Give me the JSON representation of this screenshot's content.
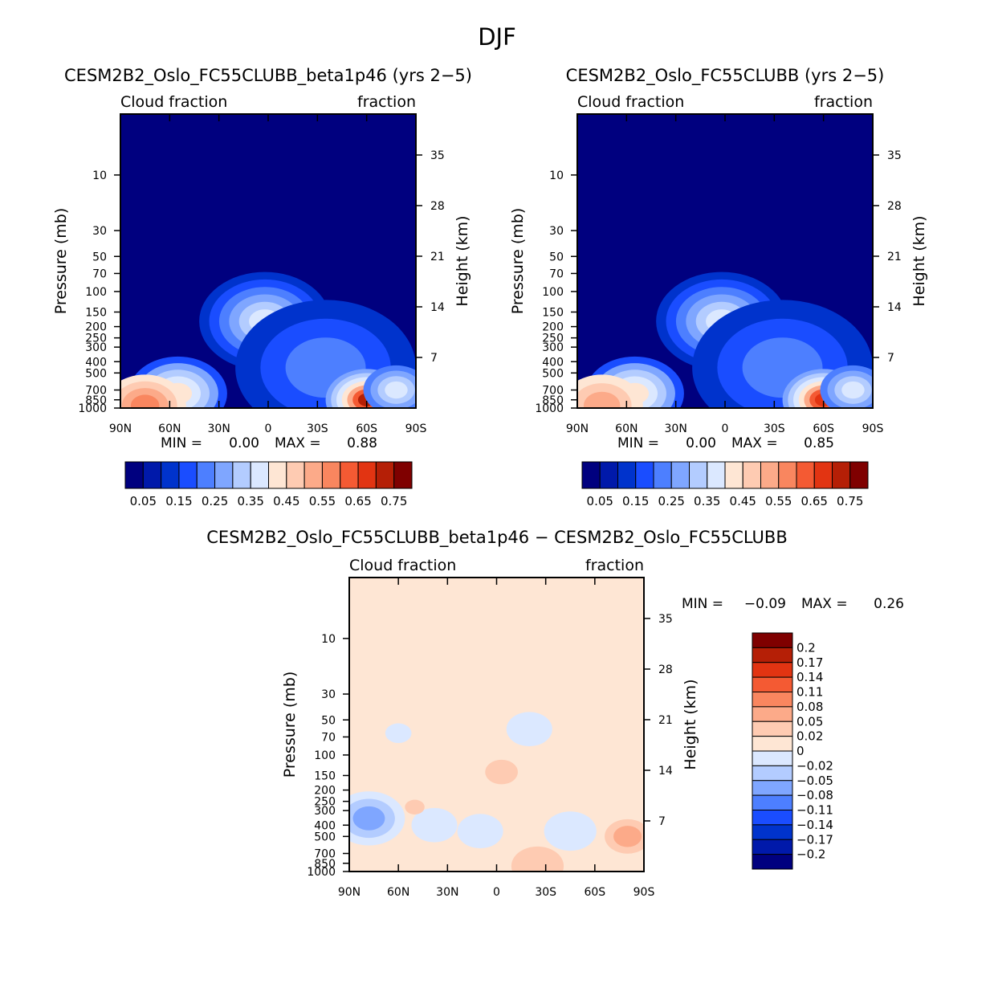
{
  "figure_title": "DJF",
  "colormaps": {
    "main": [
      "#00007f",
      "#0019aa",
      "#0033cc",
      "#1a4dff",
      "#4d7fff",
      "#7fa6ff",
      "#b3ccff",
      "#dbe8ff",
      "#fee6d4",
      "#fecbb2",
      "#fcaa89",
      "#f9865f",
      "#f45a33",
      "#e23412",
      "#b51f06",
      "#7f0000"
    ],
    "diff": [
      "#7f0000",
      "#b51f06",
      "#e23412",
      "#f45a33",
      "#f9865f",
      "#fcaa89",
      "#fecbb2",
      "#fee6d4",
      "#dbe8ff",
      "#b3ccff",
      "#7fa6ff",
      "#4d7fff",
      "#1a4dff",
      "#0033cc",
      "#0019aa",
      "#00007f"
    ]
  },
  "chart_data": [
    {
      "type": "heatmap",
      "title": "CESM2B2_Oslo_FC55CLUBB_beta1p46 (yrs 2−5)",
      "top_left_label": "Cloud fraction",
      "top_right_label": "fraction",
      "ylabel": "Pressure (mb)",
      "y2label": "Height (km)",
      "x_ticks": [
        "90N",
        "60N",
        "30N",
        "0",
        "30S",
        "60S",
        "90S"
      ],
      "y_ticks": [
        "10",
        "30",
        "50",
        "70",
        "100",
        "150",
        "200",
        "250",
        "300",
        "400",
        "500",
        "700",
        "850",
        "1000"
      ],
      "y2_ticks": [
        "35",
        "28",
        "21",
        "14",
        "7"
      ],
      "min_label": "MIN =",
      "min_value": "0.00",
      "max_label": "MAX =",
      "max_value": "0.88",
      "colorbar_labels": [
        "0.05",
        "0.15",
        "0.25",
        "0.35",
        "0.45",
        "0.55",
        "0.65",
        "0.75"
      ],
      "background_level": 0,
      "features": [
        {
          "lat": 55,
          "p": 750,
          "lat_w": 30,
          "levels": [
            3,
            5,
            6,
            7,
            8
          ]
        },
        {
          "lat": 2,
          "p": 180,
          "lat_w": 40,
          "levels": [
            2,
            3,
            4,
            5,
            6,
            7
          ]
        },
        {
          "lat": -35,
          "p": 450,
          "lat_w": 55,
          "levels": [
            2,
            3,
            4
          ]
        },
        {
          "lat": -60,
          "p": 850,
          "lat_w": 25,
          "levels": [
            5,
            6,
            7,
            8,
            10,
            12,
            14
          ]
        },
        {
          "lat": -78,
          "p": 700,
          "lat_w": 20,
          "levels": [
            4,
            5,
            6,
            7
          ]
        },
        {
          "lat": 75,
          "p": 950,
          "lat_w": 25,
          "levels": [
            8,
            9,
            10,
            11
          ]
        }
      ]
    },
    {
      "type": "heatmap",
      "title": "CESM2B2_Oslo_FC55CLUBB (yrs 2−5)",
      "top_left_label": "Cloud fraction",
      "top_right_label": "fraction",
      "ylabel": "Pressure (mb)",
      "y2label": "Height (km)",
      "x_ticks": [
        "90N",
        "60N",
        "30N",
        "0",
        "30S",
        "60S",
        "90S"
      ],
      "y_ticks": [
        "10",
        "30",
        "50",
        "70",
        "100",
        "150",
        "200",
        "250",
        "300",
        "400",
        "500",
        "700",
        "850",
        "1000"
      ],
      "y2_ticks": [
        "35",
        "28",
        "21",
        "14",
        "7"
      ],
      "min_label": "MIN =",
      "min_value": "0.00",
      "max_label": "MAX =",
      "max_value": "0.85",
      "colorbar_labels": [
        "0.05",
        "0.15",
        "0.25",
        "0.35",
        "0.45",
        "0.55",
        "0.65",
        "0.75"
      ],
      "background_level": 0,
      "features": [
        {
          "lat": 55,
          "p": 750,
          "lat_w": 30,
          "levels": [
            3,
            5,
            6,
            7,
            8
          ]
        },
        {
          "lat": 2,
          "p": 180,
          "lat_w": 40,
          "levels": [
            2,
            3,
            4,
            5,
            6,
            7
          ]
        },
        {
          "lat": -35,
          "p": 450,
          "lat_w": 55,
          "levels": [
            2,
            3,
            4
          ]
        },
        {
          "lat": -60,
          "p": 850,
          "lat_w": 25,
          "levels": [
            5,
            6,
            7,
            8,
            10,
            12,
            13
          ]
        },
        {
          "lat": -78,
          "p": 700,
          "lat_w": 20,
          "levels": [
            4,
            5,
            6,
            7
          ]
        },
        {
          "lat": 75,
          "p": 950,
          "lat_w": 25,
          "levels": [
            8,
            9,
            10
          ]
        }
      ]
    },
    {
      "type": "heatmap",
      "title": "CESM2B2_Oslo_FC55CLUBB_beta1p46 − CESM2B2_Oslo_FC55CLUBB",
      "top_left_label": "Cloud fraction",
      "top_right_label": "fraction",
      "ylabel": "Pressure (mb)",
      "y2label": "Height (km)",
      "x_ticks": [
        "90N",
        "60N",
        "30N",
        "0",
        "30S",
        "60S",
        "90S"
      ],
      "y_ticks": [
        "10",
        "30",
        "50",
        "70",
        "100",
        "150",
        "200",
        "250",
        "300",
        "400",
        "500",
        "700",
        "850",
        "1000"
      ],
      "y2_ticks": [
        "35",
        "28",
        "21",
        "14",
        "7"
      ],
      "min_label": "MIN =",
      "min_value": "−0.09",
      "max_label": "MAX =",
      "max_value": "0.26",
      "colorbar_labels": [
        "0.2",
        "0.17",
        "0.14",
        "0.11",
        "0.08",
        "0.05",
        "0.02",
        "0",
        "−0.02",
        "−0.05",
        "−0.08",
        "−0.11",
        "−0.14",
        "−0.17",
        "−0.2"
      ],
      "background_level": 7,
      "features": [
        {
          "lat": 78,
          "p": 350,
          "lat_w": 22,
          "levels": [
            8,
            9,
            10
          ]
        },
        {
          "lat": 38,
          "p": 400,
          "lat_w": 14,
          "levels": [
            8
          ]
        },
        {
          "lat": 10,
          "p": 450,
          "lat_w": 14,
          "levels": [
            8
          ]
        },
        {
          "lat": -45,
          "p": 450,
          "lat_w": 16,
          "levels": [
            8
          ]
        },
        {
          "lat": 60,
          "p": 65,
          "lat_w": 8,
          "levels": [
            8
          ]
        },
        {
          "lat": -20,
          "p": 60,
          "lat_w": 14,
          "levels": [
            8
          ]
        },
        {
          "lat": -80,
          "p": 500,
          "lat_w": 14,
          "levels": [
            6,
            5
          ]
        },
        {
          "lat": -3,
          "p": 140,
          "lat_w": 10,
          "levels": [
            6
          ]
        },
        {
          "lat": 50,
          "p": 280,
          "lat_w": 6,
          "levels": [
            6
          ]
        },
        {
          "lat": -25,
          "p": 900,
          "lat_w": 16,
          "levels": [
            6
          ]
        }
      ]
    }
  ]
}
